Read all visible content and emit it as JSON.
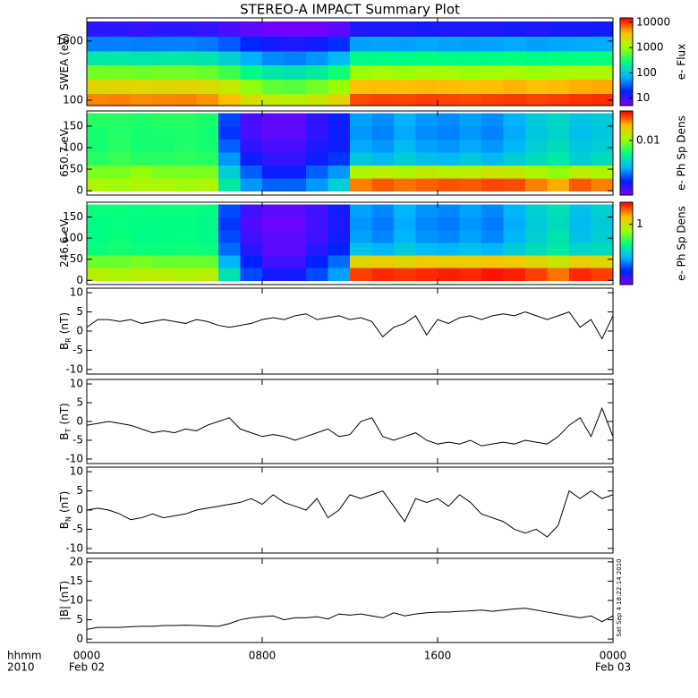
{
  "title": "STEREO-A IMPACT Summary Plot",
  "timestamp": "Sat Sep  4 18:22:14 2010",
  "colormap": [
    "#7f00ff",
    "#0020ff",
    "#00b4ff",
    "#00ff80",
    "#a0ff00",
    "#ffc000",
    "#ff0000"
  ],
  "x_axis": {
    "label_top": "hhmm",
    "label_bottom": "2010",
    "xlim": [
      0,
      24
    ],
    "xticks": [
      {
        "value": 0,
        "label": "0000"
      },
      {
        "value": 8,
        "label": "0800"
      },
      {
        "value": 16,
        "label": "1600"
      },
      {
        "value": 24,
        "label": "0000"
      }
    ],
    "dates": [
      {
        "value": 0,
        "label": "Feb 02"
      },
      {
        "value": 24,
        "label": "Feb 03"
      }
    ]
  },
  "chart_data": [
    {
      "type": "heatmap",
      "ylabel": {
        "text": "SWEA (eV)"
      },
      "ylog": true,
      "ylim": [
        81,
        2460
      ],
      "yticks": [
        100,
        1000
      ],
      "x": [
        0,
        1,
        2,
        3,
        4,
        5,
        6,
        7,
        8,
        9,
        10,
        11,
        12,
        13,
        14,
        15,
        16,
        17,
        18,
        19,
        20,
        21,
        22,
        23
      ],
      "y": [
        100,
        170,
        300,
        520,
        900,
        1600
      ],
      "z": [
        [
          6000,
          6200,
          5800,
          6000,
          6100,
          5500,
          4000,
          2200,
          1600,
          1500,
          1800,
          2600,
          9000,
          9500,
          9200,
          9800,
          9400,
          9000,
          9600,
          10000,
          9300,
          9800,
          10500,
          11000
        ],
        [
          2500,
          2600,
          2400,
          2500,
          2600,
          2300,
          1600,
          900,
          600,
          550,
          700,
          1000,
          3800,
          4000,
          3900,
          4100,
          4000,
          3800,
          4000,
          4300,
          3900,
          4100,
          4400,
          4600
        ],
        [
          700,
          720,
          680,
          700,
          710,
          650,
          450,
          250,
          180,
          160,
          200,
          300,
          1000,
          1050,
          1000,
          1100,
          1050,
          1000,
          1050,
          1150,
          1000,
          1100,
          1150,
          1200
        ],
        [
          180,
          185,
          175,
          180,
          182,
          170,
          120,
          70,
          50,
          45,
          55,
          80,
          250,
          260,
          250,
          270,
          260,
          250,
          260,
          280,
          250,
          270,
          280,
          290
        ],
        [
          45,
          46,
          44,
          45,
          46,
          42,
          32,
          20,
          15,
          14,
          16,
          22,
          60,
          62,
          60,
          65,
          62,
          60,
          62,
          66,
          60,
          64,
          66,
          68
        ],
        [
          12,
          12,
          11,
          12,
          12,
          11,
          9,
          7,
          6,
          6,
          6,
          7,
          14,
          14,
          14,
          15,
          14,
          14,
          14,
          15,
          14,
          15,
          15,
          16
        ]
      ],
      "colorbar": {
        "label": "e- Flux",
        "log": true,
        "lim": [
          5,
          15000
        ],
        "ticks": [
          10,
          100,
          1000,
          10000
        ]
      }
    },
    {
      "type": "heatmap",
      "ylabel": {
        "text": "650.7 eV"
      },
      "ylog": false,
      "ylim": [
        -10,
        185
      ],
      "yticks": [
        0,
        50,
        100,
        150
      ],
      "x": [
        0,
        1,
        2,
        3,
        4,
        5,
        6,
        7,
        8,
        9,
        10,
        11,
        12,
        13,
        14,
        15,
        16,
        17,
        18,
        19,
        20,
        21,
        22,
        23
      ],
      "y": [
        15,
        45,
        75,
        105,
        135,
        165
      ],
      "z": [
        [
          0.012,
          0.011,
          0.012,
          0.012,
          0.011,
          0.012,
          0.004,
          0.002,
          0.0015,
          0.0015,
          0.002,
          0.003,
          0.03,
          0.035,
          0.032,
          0.034,
          0.036,
          0.035,
          0.038,
          0.037,
          0.03,
          0.025,
          0.035,
          0.03
        ],
        [
          0.009,
          0.009,
          0.01,
          0.009,
          0.009,
          0.009,
          0.003,
          0.0015,
          0.001,
          0.001,
          0.0015,
          0.002,
          0.012,
          0.013,
          0.012,
          0.014,
          0.013,
          0.013,
          0.015,
          0.014,
          0.012,
          0.01,
          0.013,
          0.012
        ],
        [
          0.006,
          0.0065,
          0.006,
          0.006,
          0.0062,
          0.006,
          0.002,
          0.001,
          0.0008,
          0.0008,
          0.001,
          0.0012,
          0.0028,
          0.0025,
          0.003,
          0.0026,
          0.0025,
          0.0028,
          0.0025,
          0.003,
          0.0035,
          0.004,
          0.003,
          0.0035
        ],
        [
          0.0055,
          0.006,
          0.0055,
          0.0055,
          0.0058,
          0.0055,
          0.0015,
          0.0008,
          0.0007,
          0.0007,
          0.0009,
          0.001,
          0.0022,
          0.002,
          0.0025,
          0.0021,
          0.002,
          0.0022,
          0.002,
          0.0024,
          0.003,
          0.0035,
          0.0028,
          0.003
        ],
        [
          0.0055,
          0.0058,
          0.0055,
          0.0056,
          0.0057,
          0.0054,
          0.0012,
          0.0007,
          0.0006,
          0.0006,
          0.0008,
          0.001,
          0.002,
          0.0018,
          0.0022,
          0.0019,
          0.0018,
          0.002,
          0.0018,
          0.0022,
          0.0028,
          0.0032,
          0.0026,
          0.0028
        ],
        [
          0.006,
          0.006,
          0.0058,
          0.006,
          0.006,
          0.0056,
          0.0013,
          0.0007,
          0.0006,
          0.0006,
          0.0008,
          0.001,
          0.0021,
          0.0019,
          0.0023,
          0.002,
          0.0019,
          0.0021,
          0.0019,
          0.0023,
          0.0029,
          0.0033,
          0.0027,
          0.0029
        ]
      ],
      "colorbar": {
        "label": "e- Ph Sp Dens",
        "log": true,
        "lim": [
          0.0005,
          0.05
        ],
        "ticks": [
          0.01
        ]
      }
    },
    {
      "type": "heatmap",
      "ylabel": {
        "text": "246.6 eV"
      },
      "ylog": false,
      "ylim": [
        -10,
        185
      ],
      "yticks": [
        0,
        50,
        100,
        150
      ],
      "x": [
        0,
        1,
        2,
        3,
        4,
        5,
        6,
        7,
        8,
        9,
        10,
        11,
        12,
        13,
        14,
        15,
        16,
        17,
        18,
        19,
        20,
        21,
        22,
        23
      ],
      "y": [
        15,
        45,
        75,
        105,
        135,
        165
      ],
      "z": [
        [
          0.9,
          0.85,
          0.9,
          0.9,
          0.85,
          0.9,
          0.3,
          0.12,
          0.09,
          0.09,
          0.12,
          0.18,
          2.4,
          2.6,
          2.5,
          2.6,
          2.7,
          2.6,
          2.8,
          2.7,
          2.4,
          2,
          2.6,
          2.4
        ],
        [
          0.6,
          0.6,
          0.65,
          0.6,
          0.6,
          0.6,
          0.2,
          0.1,
          0.07,
          0.07,
          0.1,
          0.14,
          1.2,
          1.3,
          1.2,
          1.35,
          1.3,
          1.3,
          1.4,
          1.35,
          1.2,
          1,
          1.3,
          1.2
        ],
        [
          0.4,
          0.42,
          0.4,
          0.4,
          0.41,
          0.4,
          0.14,
          0.08,
          0.06,
          0.06,
          0.08,
          0.1,
          0.22,
          0.2,
          0.24,
          0.21,
          0.2,
          0.22,
          0.2,
          0.24,
          0.28,
          0.32,
          0.26,
          0.28
        ],
        [
          0.38,
          0.4,
          0.38,
          0.38,
          0.39,
          0.37,
          0.12,
          0.07,
          0.06,
          0.06,
          0.07,
          0.09,
          0.18,
          0.16,
          0.2,
          0.17,
          0.16,
          0.18,
          0.16,
          0.2,
          0.25,
          0.3,
          0.22,
          0.25
        ],
        [
          0.38,
          0.39,
          0.38,
          0.38,
          0.38,
          0.37,
          0.11,
          0.065,
          0.055,
          0.055,
          0.07,
          0.085,
          0.17,
          0.15,
          0.19,
          0.16,
          0.15,
          0.17,
          0.15,
          0.19,
          0.24,
          0.28,
          0.21,
          0.24
        ],
        [
          0.4,
          0.4,
          0.39,
          0.4,
          0.4,
          0.38,
          0.12,
          0.07,
          0.06,
          0.06,
          0.07,
          0.09,
          0.18,
          0.16,
          0.2,
          0.17,
          0.16,
          0.18,
          0.16,
          0.2,
          0.25,
          0.29,
          0.22,
          0.25
        ]
      ],
      "colorbar": {
        "label": "e- Ph Sp Dens",
        "log": true,
        "lim": [
          0.05,
          3
        ],
        "ticks": [
          1
        ]
      }
    },
    {
      "type": "line",
      "ylabel": {
        "text": "B",
        "sub": "R",
        "unit": "(nT)"
      },
      "ylim": [
        -11.2,
        11.2
      ],
      "yticks": [
        -10,
        -5,
        0,
        5,
        10
      ],
      "color": "#000000",
      "x": [
        0,
        0.5,
        1,
        1.5,
        2,
        2.5,
        3,
        3.5,
        4,
        4.5,
        5,
        5.5,
        6,
        6.5,
        7,
        7.5,
        8,
        8.5,
        9,
        9.5,
        10,
        10.5,
        11,
        11.5,
        12,
        12.5,
        13,
        13.5,
        14,
        14.5,
        15,
        15.5,
        16,
        16.5,
        17,
        17.5,
        18,
        18.5,
        19,
        19.5,
        20,
        20.5,
        21,
        21.5,
        22,
        22.5,
        23,
        23.5,
        24
      ],
      "values": [
        1,
        3,
        3,
        2.5,
        3,
        2,
        2.5,
        3,
        2.5,
        2,
        3,
        2.5,
        1.5,
        1,
        1.5,
        2,
        3,
        3.5,
        3,
        4,
        4.5,
        3,
        3.5,
        4,
        3,
        3.5,
        2.5,
        -1.5,
        1,
        2,
        4,
        -1,
        3,
        2,
        3.5,
        4,
        3,
        4,
        4.5,
        4,
        5,
        4,
        3,
        4,
        5,
        1,
        3,
        -2,
        4
      ]
    },
    {
      "type": "line",
      "ylabel": {
        "text": "B",
        "sub": "T",
        "unit": "(nT)"
      },
      "ylim": [
        -11.2,
        11.2
      ],
      "yticks": [
        -10,
        -5,
        0,
        5,
        10
      ],
      "color": "#000000",
      "x": [
        0,
        0.5,
        1,
        1.5,
        2,
        2.5,
        3,
        3.5,
        4,
        4.5,
        5,
        5.5,
        6,
        6.5,
        7,
        7.5,
        8,
        8.5,
        9,
        9.5,
        10,
        10.5,
        11,
        11.5,
        12,
        12.5,
        13,
        13.5,
        14,
        14.5,
        15,
        15.5,
        16,
        16.5,
        17,
        17.5,
        18,
        18.5,
        19,
        19.5,
        20,
        20.5,
        21,
        21.5,
        22,
        22.5,
        23,
        23.5,
        24
      ],
      "values": [
        -1,
        -0.5,
        0,
        -0.5,
        -1,
        -2,
        -3,
        -2.5,
        -3,
        -2,
        -2.5,
        -1,
        0,
        1,
        -2,
        -3,
        -4,
        -3.5,
        -4,
        -5,
        -4,
        -3,
        -2,
        -4,
        -3.5,
        0,
        1,
        -4,
        -5,
        -4,
        -3,
        -5,
        -6,
        -5.5,
        -6,
        -5,
        -6.5,
        -6,
        -5.5,
        -6,
        -5,
        -5.5,
        -6,
        -4,
        -1,
        1,
        -4,
        3.5,
        -4
      ]
    },
    {
      "type": "line",
      "ylabel": {
        "text": "B",
        "sub": "N",
        "unit": "(nT)"
      },
      "ylim": [
        -11.2,
        11.2
      ],
      "yticks": [
        -10,
        -5,
        0,
        5,
        10
      ],
      "color": "#000000",
      "x": [
        0,
        0.5,
        1,
        1.5,
        2,
        2.5,
        3,
        3.5,
        4,
        4.5,
        5,
        5.5,
        6,
        6.5,
        7,
        7.5,
        8,
        8.5,
        9,
        9.5,
        10,
        10.5,
        11,
        11.5,
        12,
        12.5,
        13,
        13.5,
        14,
        14.5,
        15,
        15.5,
        16,
        16.5,
        17,
        17.5,
        18,
        18.5,
        19,
        19.5,
        20,
        20.5,
        21,
        21.5,
        22,
        22.5,
        23,
        23.5,
        24
      ],
      "values": [
        0,
        0.5,
        0,
        -1,
        -2.5,
        -2,
        -1,
        -2,
        -1.5,
        -1,
        0,
        0.5,
        1,
        1.5,
        2,
        3,
        1.5,
        4,
        2,
        1,
        0,
        3,
        -2,
        0,
        4,
        3,
        4,
        5,
        1,
        -3,
        3,
        2,
        3,
        1,
        4,
        2,
        -1,
        -2,
        -3,
        -5,
        -6,
        -5,
        -7,
        -4,
        5,
        3,
        5,
        3,
        4
      ]
    },
    {
      "type": "line",
      "ylabel": {
        "text": "|B| (nT)"
      },
      "ylim": [
        -0.9,
        20.9
      ],
      "yticks": [
        0,
        5,
        10,
        15,
        20
      ],
      "color": "#000000",
      "x": [
        0,
        0.5,
        1,
        1.5,
        2,
        2.5,
        3,
        3.5,
        4,
        4.5,
        5,
        5.5,
        6,
        6.5,
        7,
        7.5,
        8,
        8.5,
        9,
        9.5,
        10,
        10.5,
        11,
        11.5,
        12,
        12.5,
        13,
        13.5,
        14,
        14.5,
        15,
        15.5,
        16,
        16.5,
        17,
        17.5,
        18,
        18.5,
        19,
        19.5,
        20,
        20.5,
        21,
        21.5,
        22,
        22.5,
        23,
        23.5,
        24
      ],
      "values": [
        2.5,
        3,
        3,
        3,
        3.2,
        3.3,
        3.3,
        3.5,
        3.5,
        3.6,
        3.5,
        3.4,
        3.3,
        4,
        5,
        5.5,
        5.8,
        6,
        5,
        5.5,
        5.5,
        5.8,
        5.2,
        6.5,
        6.2,
        6.5,
        6,
        5.5,
        6.8,
        6,
        6.5,
        6.8,
        7,
        7,
        7.2,
        7.3,
        7.5,
        7.2,
        7.5,
        7.8,
        8,
        7.5,
        7,
        6.5,
        6,
        5.5,
        6,
        4.5,
        6
      ]
    }
  ]
}
